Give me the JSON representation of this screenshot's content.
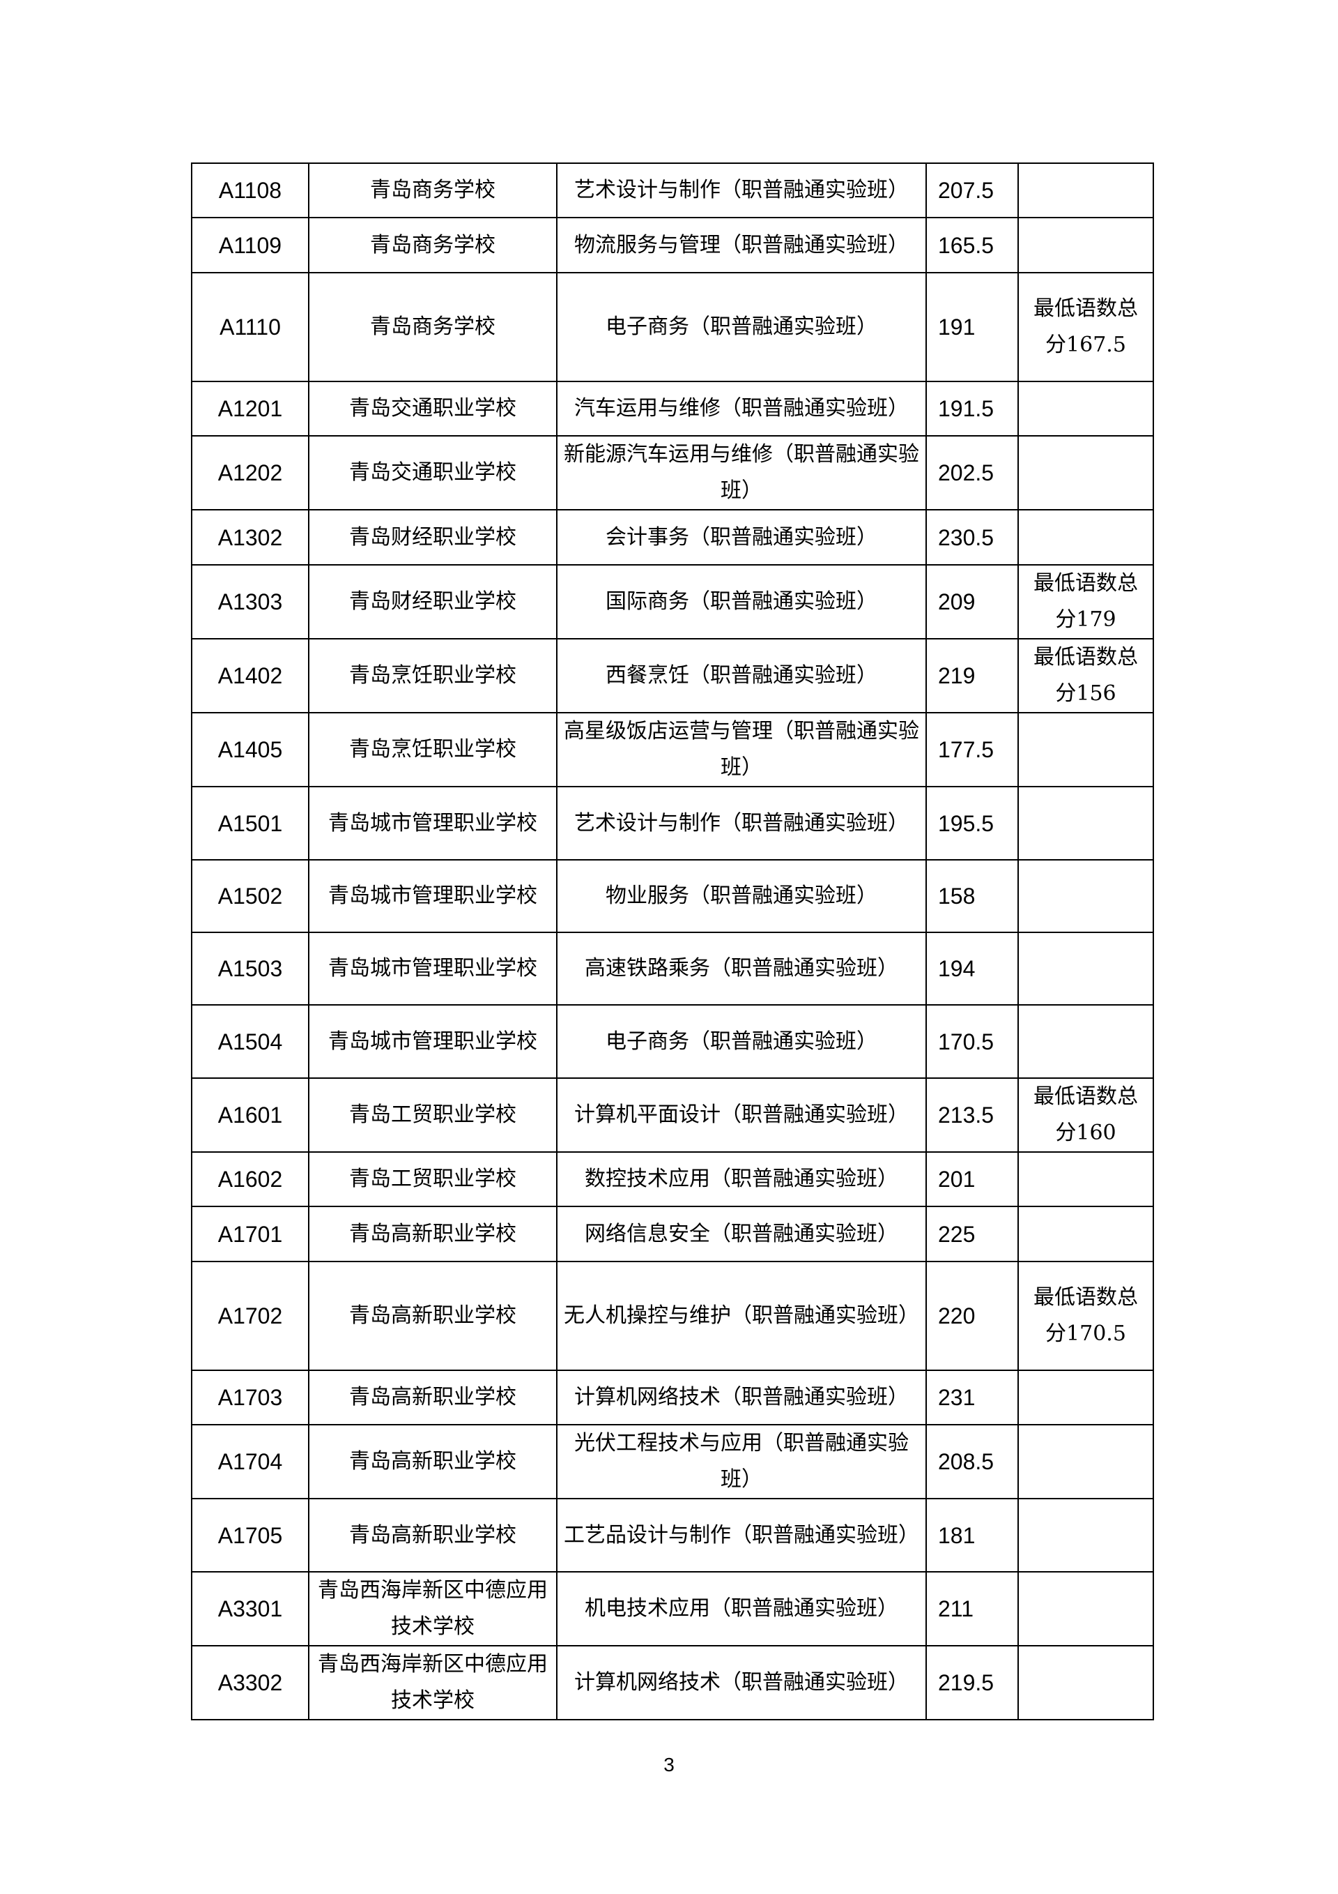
{
  "table": {
    "rows": [
      {
        "code": "A1108",
        "school": "青岛商务学校",
        "major": "艺术设计与制作（职普融通实验班）",
        "score": "207.5",
        "note": ""
      },
      {
        "code": "A1109",
        "school": "青岛商务学校",
        "major": "物流服务与管理（职普融通实验班）",
        "score": "165.5",
        "note": ""
      },
      {
        "code": "A1110",
        "school": "青岛商务学校",
        "major": "电子商务（职普融通实验班）",
        "score": "191",
        "note": "最低语数总分167.5"
      },
      {
        "code": "A1201",
        "school": "青岛交通职业学校",
        "major": "汽车运用与维修（职普融通实验班）",
        "score": "191.5",
        "note": ""
      },
      {
        "code": "A1202",
        "school": "青岛交通职业学校",
        "major": "新能源汽车运用与维修（职普融通实验班）",
        "score": "202.5",
        "note": ""
      },
      {
        "code": "A1302",
        "school": "青岛财经职业学校",
        "major": "会计事务（职普融通实验班）",
        "score": "230.5",
        "note": ""
      },
      {
        "code": "A1303",
        "school": "青岛财经职业学校",
        "major": "国际商务（职普融通实验班）",
        "score": "209",
        "note": "最低语数总分179"
      },
      {
        "code": "A1402",
        "school": "青岛烹饪职业学校",
        "major": "西餐烹饪（职普融通实验班）",
        "score": "219",
        "note": "最低语数总分156"
      },
      {
        "code": "A1405",
        "school": "青岛烹饪职业学校",
        "major": "高星级饭店运营与管理（职普融通实验班）",
        "score": "177.5",
        "note": ""
      },
      {
        "code": "A1501",
        "school": "青岛城市管理职业学校",
        "major": "艺术设计与制作（职普融通实验班）",
        "score": "195.5",
        "note": ""
      },
      {
        "code": "A1502",
        "school": "青岛城市管理职业学校",
        "major": "物业服务（职普融通实验班）",
        "score": "158",
        "note": ""
      },
      {
        "code": "A1503",
        "school": "青岛城市管理职业学校",
        "major": "高速铁路乘务（职普融通实验班）",
        "score": "194",
        "note": ""
      },
      {
        "code": "A1504",
        "school": "青岛城市管理职业学校",
        "major": "电子商务（职普融通实验班）",
        "score": "170.5",
        "note": ""
      },
      {
        "code": "A1601",
        "school": "青岛工贸职业学校",
        "major": "计算机平面设计（职普融通实验班）",
        "score": "213.5",
        "note": "最低语数总分160"
      },
      {
        "code": "A1602",
        "school": "青岛工贸职业学校",
        "major": "数控技术应用（职普融通实验班）",
        "score": "201",
        "note": ""
      },
      {
        "code": "A1701",
        "school": "青岛高新职业学校",
        "major": "网络信息安全（职普融通实验班）",
        "score": "225",
        "note": ""
      },
      {
        "code": "A1702",
        "school": "青岛高新职业学校",
        "major": "无人机操控与维护（职普融通实验班）",
        "score": "220",
        "note": "最低语数总分170.5"
      },
      {
        "code": "A1703",
        "school": "青岛高新职业学校",
        "major": "计算机网络技术（职普融通实验班）",
        "score": "231",
        "note": ""
      },
      {
        "code": "A1704",
        "school": "青岛高新职业学校",
        "major": "光伏工程技术与应用（职普融通实验班）",
        "score": "208.5",
        "note": ""
      },
      {
        "code": "A1705",
        "school": "青岛高新职业学校",
        "major": "工艺品设计与制作（职普融通实验班）",
        "score": "181",
        "note": ""
      },
      {
        "code": "A3301",
        "school": "青岛西海岸新区中德应用技术学校",
        "major": "机电技术应用（职普融通实验班）",
        "score": "211",
        "note": ""
      },
      {
        "code": "A3302",
        "school": "青岛西海岸新区中德应用技术学校",
        "major": "计算机网络技术（职普融通实验班）",
        "score": "219.5",
        "note": ""
      }
    ]
  },
  "footer": {
    "page_number": "3"
  }
}
